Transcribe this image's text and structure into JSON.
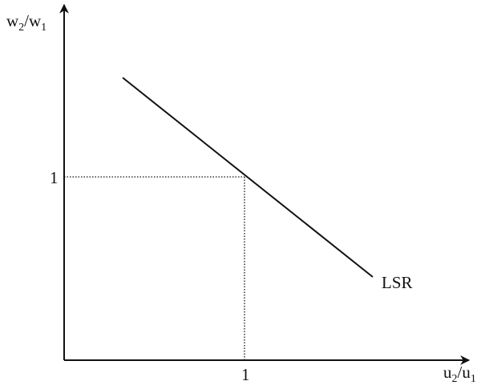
{
  "y_axis": {
    "label": [
      "w",
      "2",
      "/w",
      "1"
    ],
    "tick": "1"
  },
  "x_axis": {
    "label": [
      "u",
      "2",
      "/u",
      "1"
    ],
    "tick": "1"
  },
  "line": {
    "label": "LSR"
  }
}
